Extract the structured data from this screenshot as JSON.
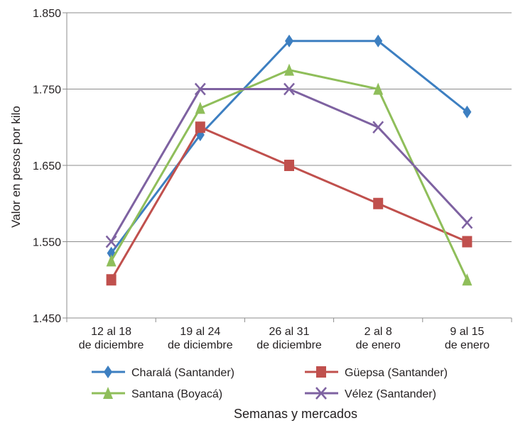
{
  "chart_data": {
    "type": "line",
    "title": "",
    "xlabel": "Semanas y mercados",
    "ylabel": "Valor en pesos por kilo",
    "ylim": [
      1.45,
      1.85
    ],
    "yticks": [
      1.45,
      1.55,
      1.65,
      1.75,
      1.85
    ],
    "ytick_labels": [
      "1.450",
      "1.550",
      "1.650",
      "1.750",
      "1.850"
    ],
    "grid": "horizontal",
    "legend_position": "bottom",
    "categories": [
      [
        "12 al 18",
        "de diciembre"
      ],
      [
        "19 al 24",
        "de diciembre"
      ],
      [
        "26 al 31",
        "de diciembre"
      ],
      [
        "2 al 8",
        "de enero"
      ],
      [
        "9 al 15",
        "de enero"
      ]
    ],
    "series": [
      {
        "name": "Charalá (Santander)",
        "color": "#3d7fc1",
        "marker": "diamond",
        "values": [
          1.535,
          1.69,
          1.813,
          1.813,
          1.72
        ]
      },
      {
        "name": "Güepsa (Santander)",
        "color": "#c0504d",
        "marker": "square",
        "values": [
          1.5,
          1.7,
          1.65,
          1.6,
          1.55
        ]
      },
      {
        "name": "Santana (Boyacá)",
        "color": "#8fbe5a",
        "marker": "triangle",
        "values": [
          1.525,
          1.725,
          1.775,
          1.75,
          1.5
        ]
      },
      {
        "name": "Vélez (Santander)",
        "color": "#7e62a1",
        "marker": "x",
        "values": [
          1.55,
          1.75,
          1.75,
          1.7,
          1.575
        ]
      }
    ]
  }
}
